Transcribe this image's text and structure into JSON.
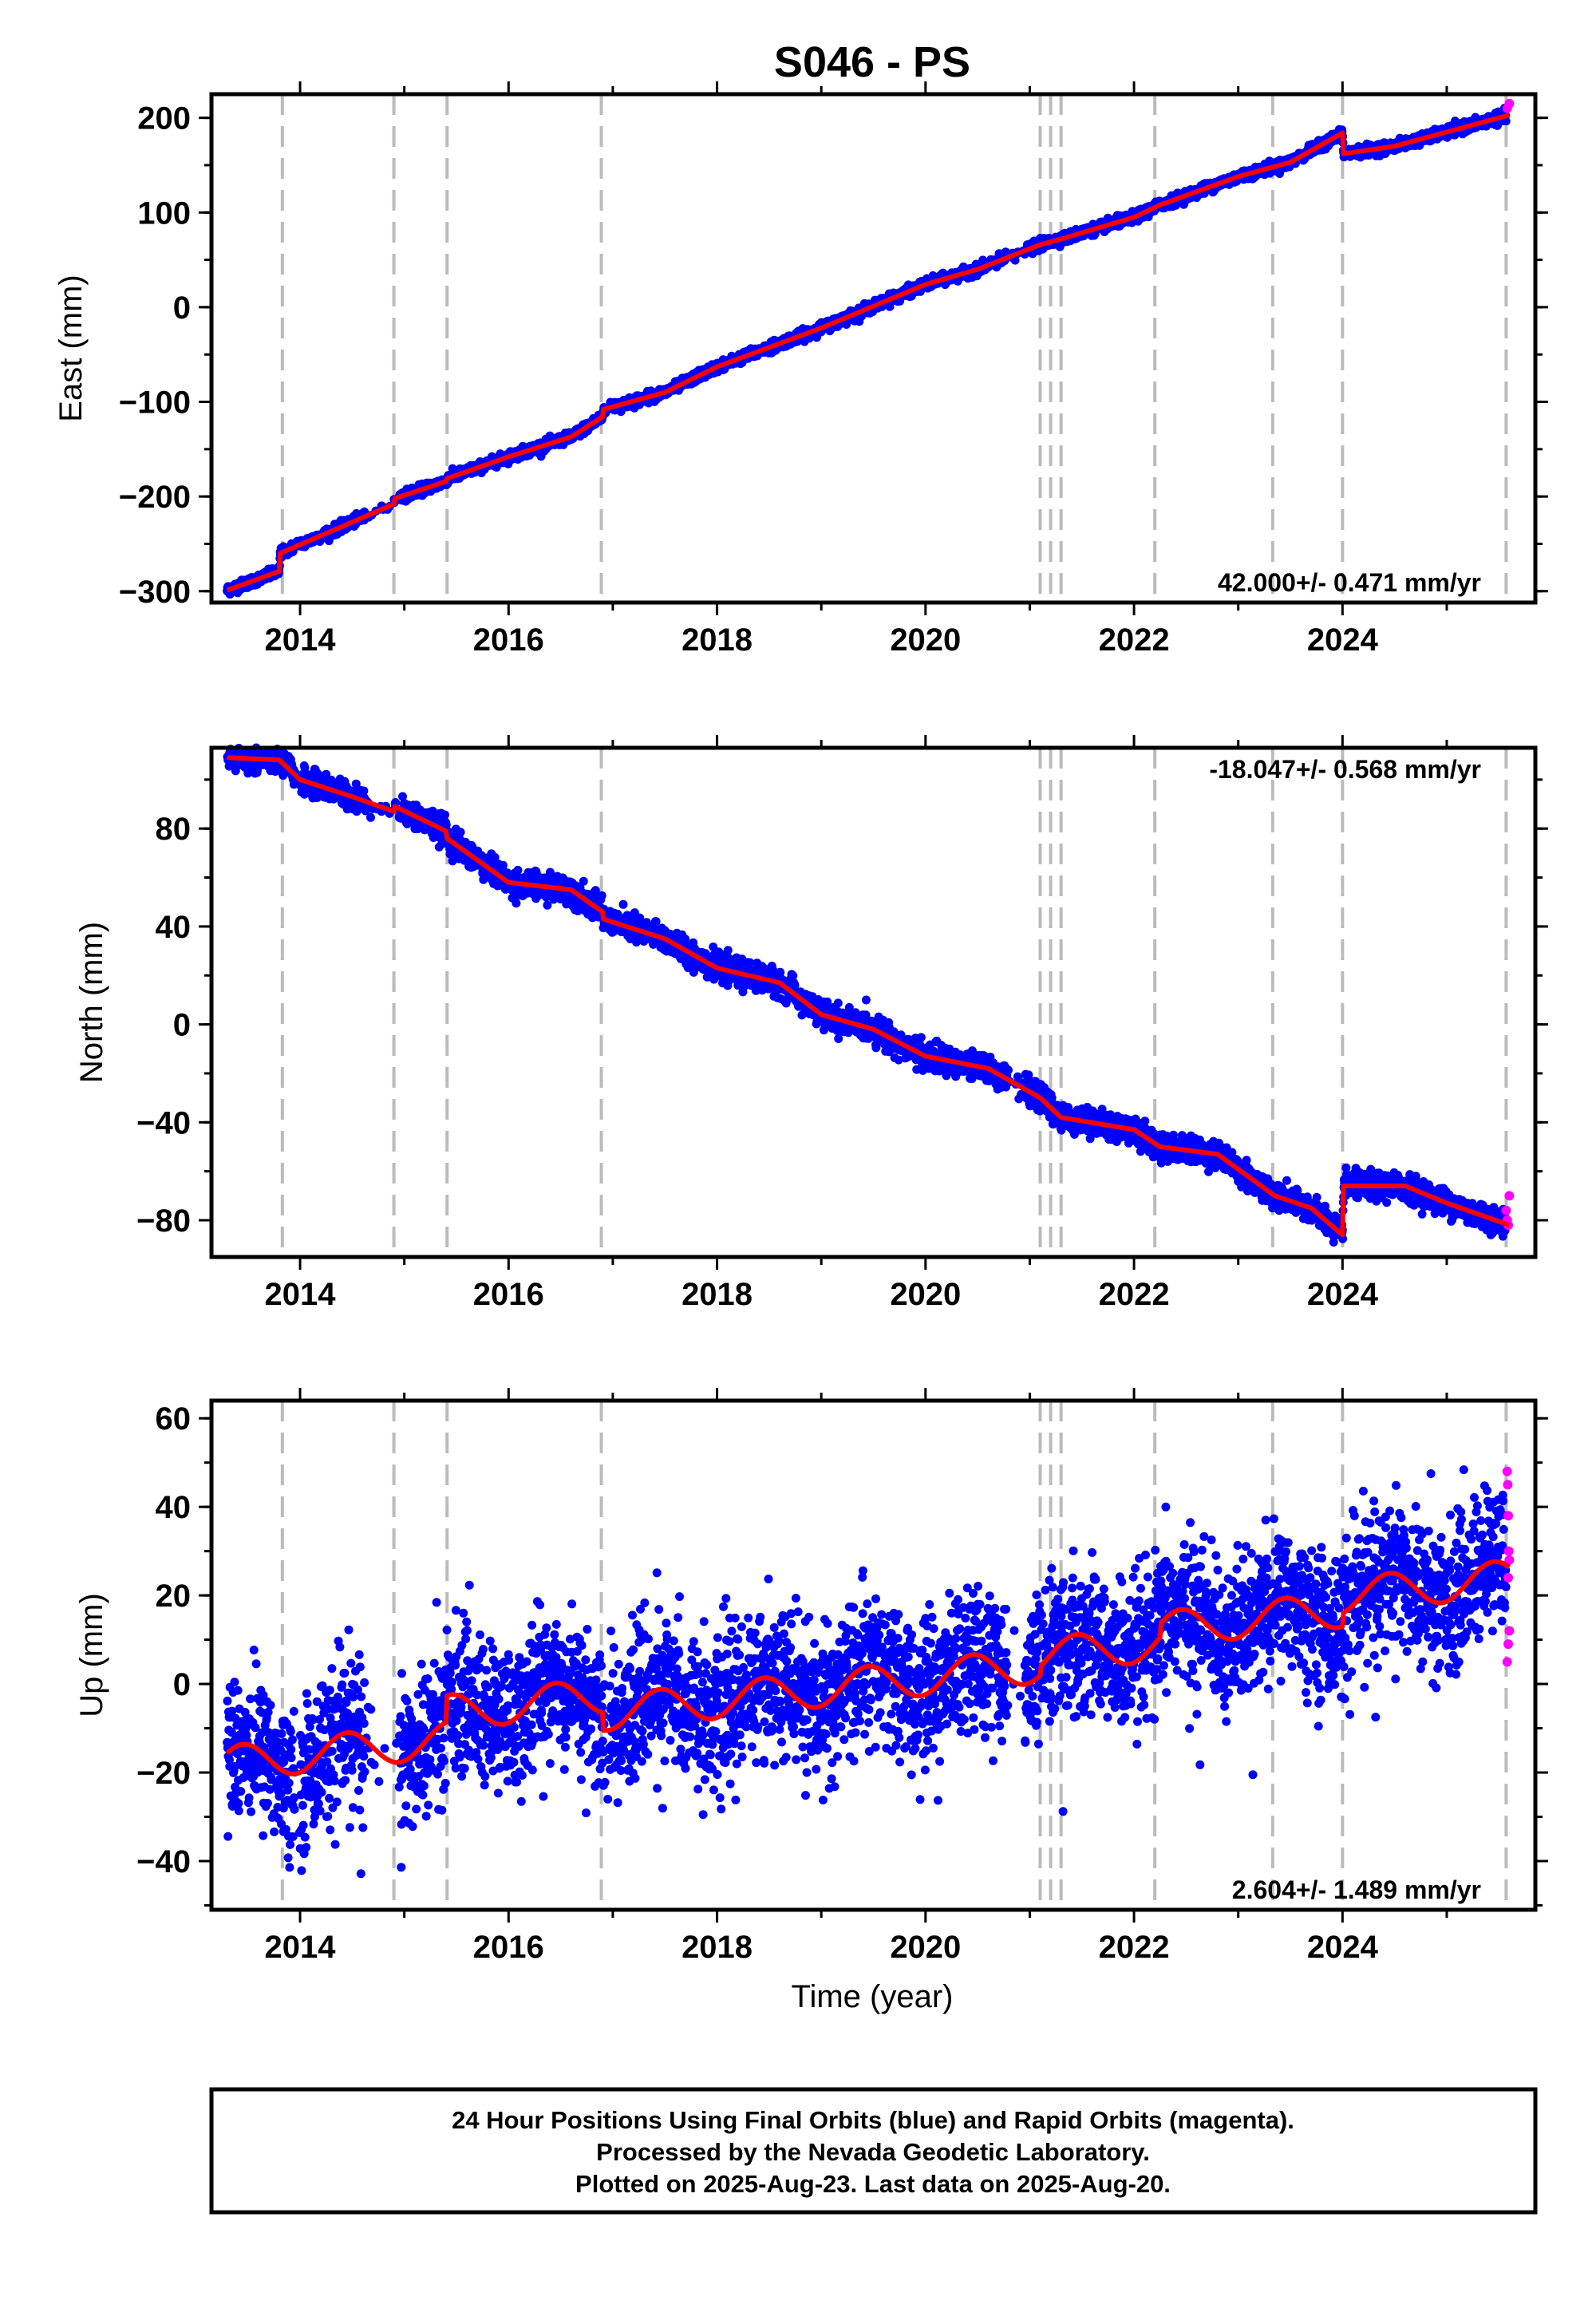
{
  "title": "S046 - PS",
  "xlabel": "Time (year)",
  "footer": [
    "24 Hour Positions Using Final Orbits (blue) and Rapid Orbits (magenta).",
    "Processed by the Nevada Geodetic Laboratory.",
    "Plotted on 2025-Aug-23. Last data on 2025-Aug-20."
  ],
  "colors": {
    "final": "#0000ff",
    "rapid": "#ff00ff",
    "model": "#ff0000",
    "event": "#bbbbbb"
  },
  "chart_data": [
    {
      "type": "scatter",
      "component": "East",
      "ylabel": "East (mm)",
      "xlim": [
        2013.15,
        2025.85
      ],
      "ylim": [
        -312,
        225
      ],
      "yticks": [
        -300,
        -200,
        -100,
        0,
        100,
        200
      ],
      "xticks": [
        2014,
        2016,
        2018,
        2020,
        2022,
        2024
      ],
      "rate_label": "42.000+/- 0.471 mm/yr",
      "rate_position": "bottom-right",
      "model": [
        [
          2013.3,
          -299
        ],
        [
          2013.8,
          -279
        ],
        [
          2013.81,
          -260
        ],
        [
          2014.9,
          -208
        ],
        [
          2014.91,
          -202
        ],
        [
          2015.4,
          -184
        ],
        [
          2015.41,
          -181
        ],
        [
          2016.0,
          -158
        ],
        [
          2016.6,
          -137
        ],
        [
          2016.9,
          -116
        ],
        [
          2016.91,
          -108
        ],
        [
          2017.5,
          -90
        ],
        [
          2018.0,
          -63
        ],
        [
          2019.0,
          -22
        ],
        [
          2020.0,
          24
        ],
        [
          2020.5,
          40
        ],
        [
          2021.1,
          66
        ],
        [
          2021.2,
          69
        ],
        [
          2021.3,
          72
        ],
        [
          2022.0,
          95
        ],
        [
          2022.25,
          108
        ],
        [
          2023.0,
          138
        ],
        [
          2023.5,
          153
        ],
        [
          2024.0,
          184
        ],
        [
          2024.01,
          162
        ],
        [
          2024.5,
          170
        ],
        [
          2025.6,
          203
        ]
      ],
      "rapid": [
        [
          2025.58,
          210
        ],
        [
          2025.6,
          215
        ]
      ]
    },
    {
      "type": "scatter",
      "component": "North",
      "ylabel": "North (mm)",
      "xlim": [
        2013.15,
        2025.85
      ],
      "ylim": [
        -95,
        113
      ],
      "yticks": [
        -80,
        -40,
        0,
        40,
        80
      ],
      "xticks": [
        2014,
        2016,
        2018,
        2020,
        2022,
        2024
      ],
      "rate_label": "-18.047+/- 0.568 mm/yr",
      "rate_position": "top-right",
      "model": [
        [
          2013.3,
          109
        ],
        [
          2013.8,
          108
        ],
        [
          2014.0,
          100
        ],
        [
          2014.5,
          93
        ],
        [
          2014.9,
          87
        ],
        [
          2014.91,
          89
        ],
        [
          2015.4,
          79
        ],
        [
          2015.41,
          76
        ],
        [
          2016.0,
          58
        ],
        [
          2016.6,
          55
        ],
        [
          2016.9,
          46
        ],
        [
          2016.91,
          43
        ],
        [
          2017.5,
          35
        ],
        [
          2018.0,
          23
        ],
        [
          2018.6,
          17
        ],
        [
          2019.0,
          4
        ],
        [
          2019.5,
          -2
        ],
        [
          2020.0,
          -13
        ],
        [
          2020.6,
          -18
        ],
        [
          2021.1,
          -30
        ],
        [
          2021.3,
          -38
        ],
        [
          2022.0,
          -43
        ],
        [
          2022.25,
          -50
        ],
        [
          2022.8,
          -53
        ],
        [
          2023.35,
          -70
        ],
        [
          2023.7,
          -75
        ],
        [
          2024.0,
          -86
        ],
        [
          2024.01,
          -66
        ],
        [
          2024.6,
          -66
        ],
        [
          2025.0,
          -73
        ],
        [
          2025.6,
          -82
        ]
      ],
      "rapid": [
        [
          2025.57,
          -76
        ],
        [
          2025.58,
          -80
        ],
        [
          2025.59,
          -82
        ],
        [
          2025.6,
          -70
        ]
      ]
    },
    {
      "type": "scatter",
      "component": "Up",
      "ylabel": "Up (mm)",
      "xlim": [
        2013.15,
        2025.85
      ],
      "ylim": [
        -51,
        64
      ],
      "yticks": [
        -40,
        -20,
        0,
        20,
        40,
        60
      ],
      "xticks": [
        2014,
        2016,
        2018,
        2020,
        2022,
        2024
      ],
      "rate_label": "2.604+/- 1.489 mm/yr",
      "rate_position": "bottom-right",
      "trend": [
        [
          2013.3,
          -18
        ],
        [
          2025.6,
          14
        ]
      ],
      "steps": [
        [
          2015.4,
          6
        ],
        [
          2016.9,
          -4
        ],
        [
          2021.1,
          2
        ],
        [
          2022.25,
          3
        ],
        [
          2024.0,
          3
        ]
      ],
      "annual_amplitude": 4,
      "rapid": [
        [
          2025.58,
          48
        ],
        [
          2025.585,
          45
        ],
        [
          2025.59,
          38
        ],
        [
          2025.595,
          30
        ],
        [
          2025.6,
          28
        ],
        [
          2025.59,
          24
        ],
        [
          2025.6,
          12
        ],
        [
          2025.59,
          9
        ],
        [
          2025.58,
          5
        ]
      ]
    }
  ],
  "events": [
    2013.83,
    2014.9,
    2015.41,
    2016.89,
    2021.1,
    2021.2,
    2021.3,
    2022.2,
    2023.33,
    2024.0,
    2025.57
  ]
}
